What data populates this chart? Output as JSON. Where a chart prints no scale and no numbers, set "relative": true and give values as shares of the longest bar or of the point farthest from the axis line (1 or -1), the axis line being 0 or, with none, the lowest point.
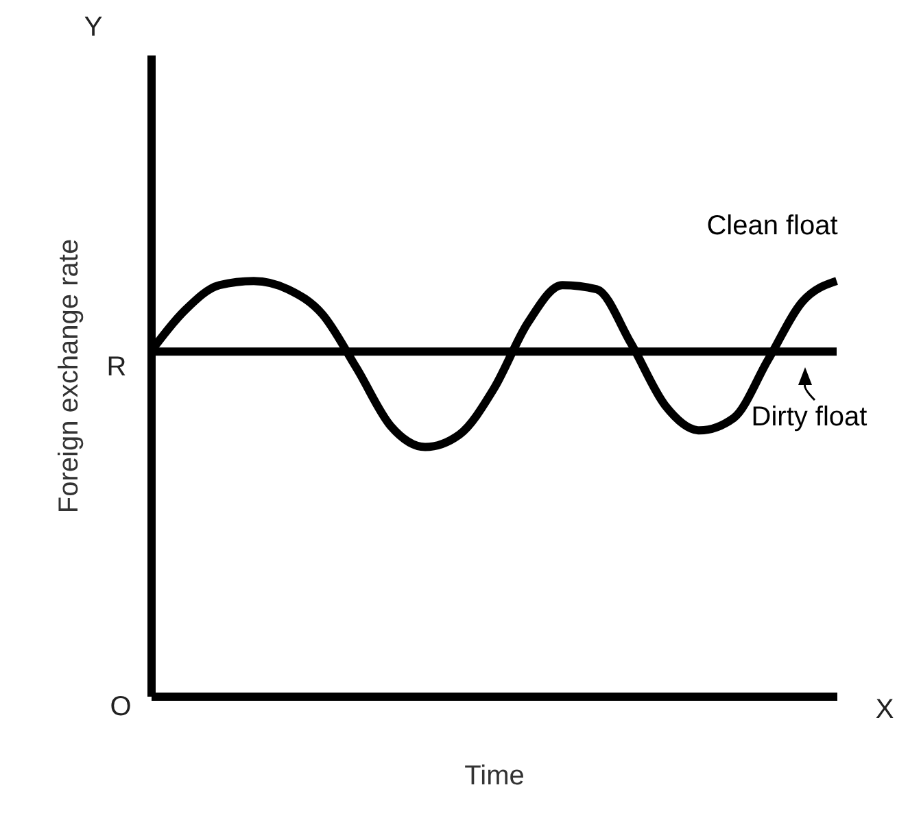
{
  "chart_data": {
    "type": "line",
    "relative": true,
    "xlabel": "Time",
    "ylabel": "Foreign exchange rate",
    "categories": [
      null,
      null,
      null,
      null,
      null,
      null,
      null,
      null,
      null,
      null,
      null,
      null,
      null,
      null,
      null,
      null,
      null,
      null,
      null,
      null,
      null
    ],
    "series": [
      {
        "name": "Clean float",
        "color": "#000000",
        "values": [
          0.83,
          0.93,
          0.99,
          1,
          0.98,
          0.92,
          0.79,
          0.65,
          0.6,
          0.63,
          0.74,
          0.9,
          0.99,
          0.98,
          0.85,
          0.7,
          0.64,
          0.67,
          0.81,
          0.95,
          1
        ]
      },
      {
        "name": "Dirty float",
        "color": "#000000",
        "values": [
          0.83,
          0.83,
          0.83,
          0.83,
          0.83,
          0.83,
          0.83,
          0.83,
          0.83,
          0.83,
          0.83,
          0.83,
          0.83,
          0.83,
          0.83,
          0.83,
          0.83,
          0.83,
          0.83,
          0.83,
          0.83
        ]
      }
    ],
    "annotations": [
      "Y",
      "X",
      "O",
      "R"
    ],
    "grid": false,
    "marker": "none",
    "line_style": "solid"
  }
}
